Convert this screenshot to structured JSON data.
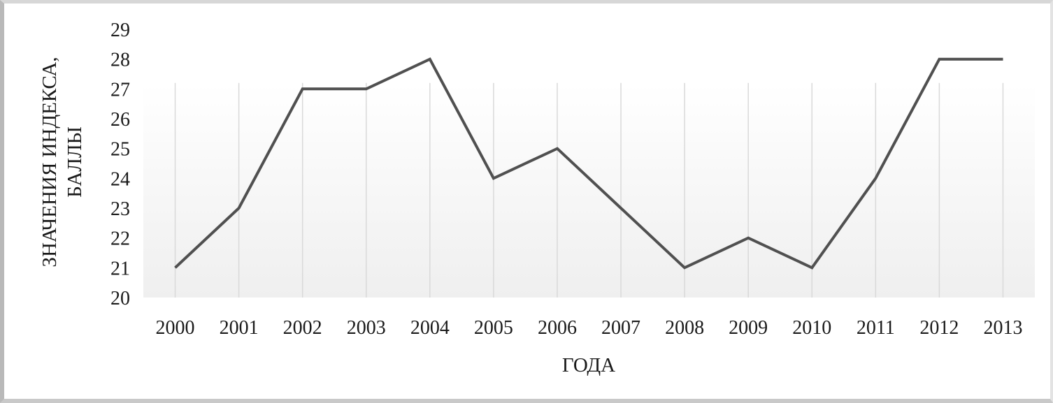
{
  "chart_data": {
    "type": "line",
    "title": "",
    "xlabel": "ГОДА",
    "ylabel_lines": [
      "ЗНАЧЕНИЯ  ИНДЕКСА,",
      "БАЛЛЫ"
    ],
    "categories": [
      "2000",
      "2001",
      "2002",
      "2003",
      "2004",
      "2005",
      "2006",
      "2007",
      "2008",
      "2009",
      "2010",
      "2011",
      "2012",
      "2013"
    ],
    "series": [
      {
        "values": [
          21,
          23,
          27,
          27,
          28,
          24,
          25,
          23,
          21,
          22,
          21,
          24,
          28,
          28
        ]
      }
    ],
    "ylim": [
      20,
      29
    ],
    "yticks": [
      20,
      21,
      22,
      23,
      24,
      25,
      26,
      27,
      28,
      29
    ],
    "grid": "vertical",
    "legend": "none",
    "colors": {
      "line": "#505050",
      "grid": "#d9d9d9",
      "plot_fill_top": "#ffffff",
      "plot_fill_bottom": "#efefef"
    }
  }
}
